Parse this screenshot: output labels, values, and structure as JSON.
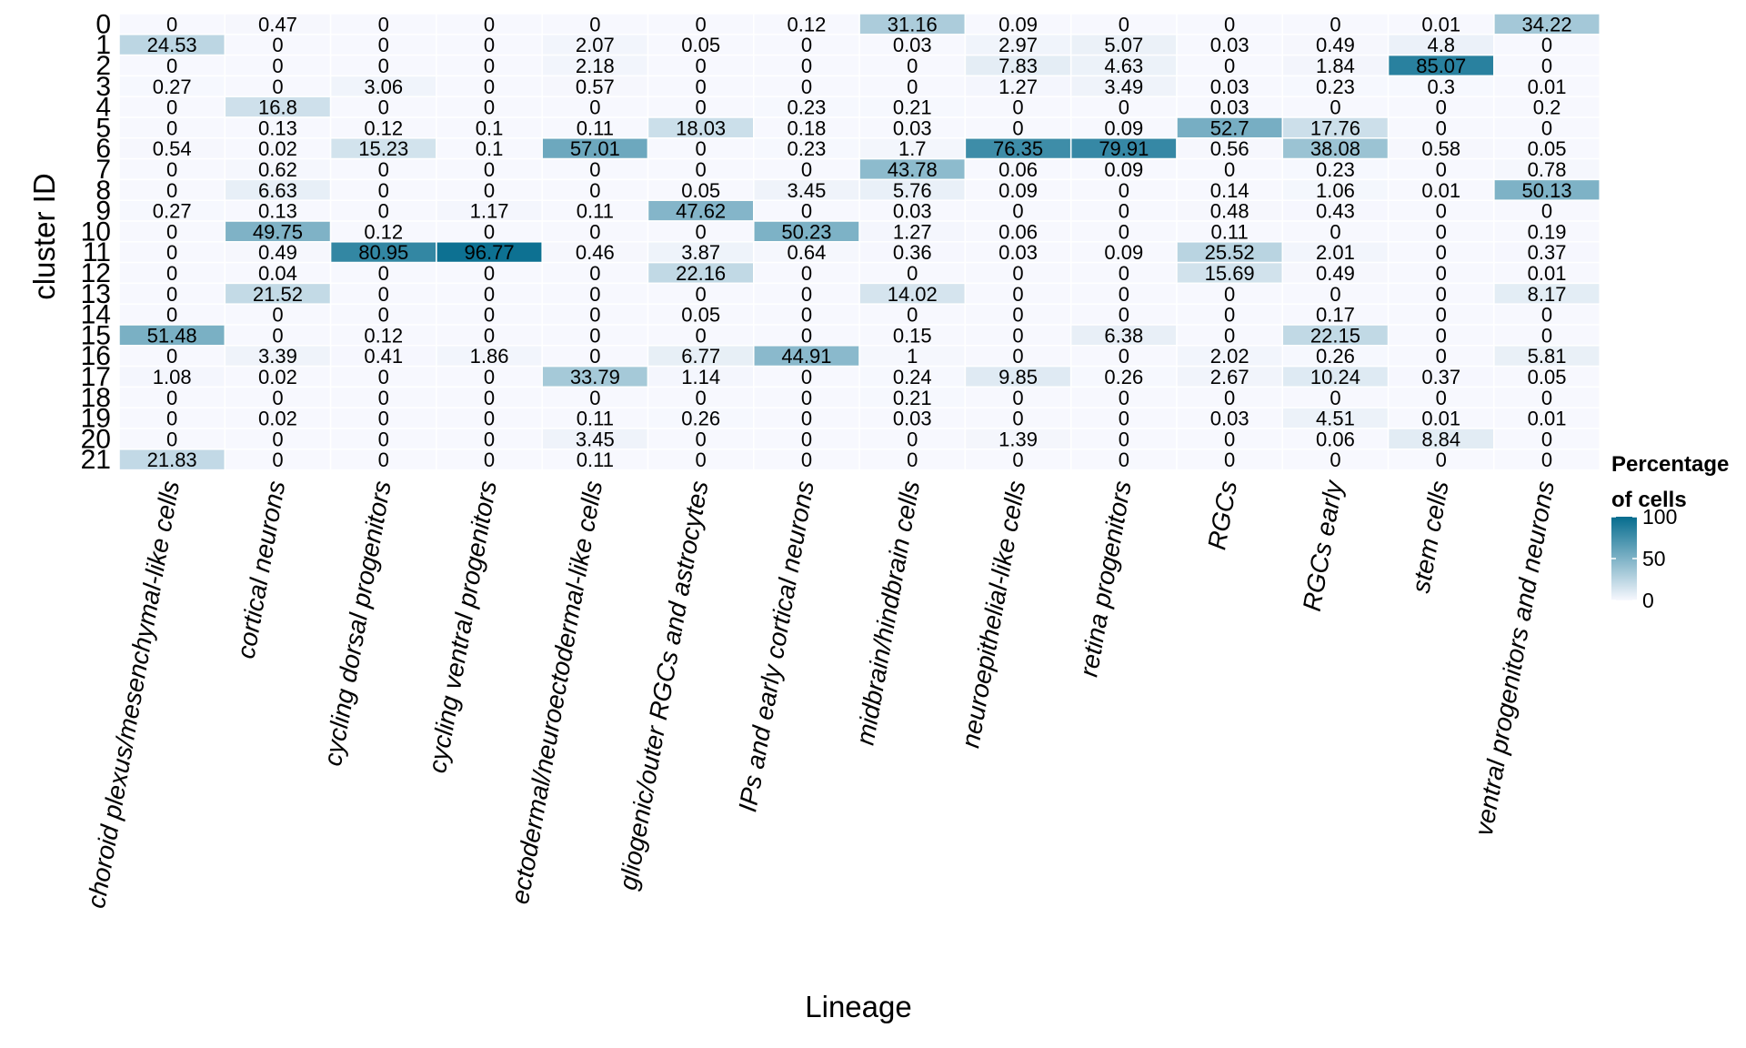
{
  "chart_data": {
    "type": "heatmap",
    "xlabel": "Lineage",
    "ylabel": "cluster ID",
    "legend": {
      "title_line1": "Percentage",
      "title_line2": "of cells",
      "ticks": [
        0,
        50,
        100
      ],
      "placement": "right",
      "color_low": "#f7f8fe",
      "color_high": "#056c8e"
    },
    "columns": [
      "choroid plexus/mesenchymal-like cells",
      "cortical neurons",
      "cycling dorsal progenitors",
      "cycling ventral progenitors",
      "ectodermal/neuroectodermal-like cells",
      "gliogenic/outer RGCs and astrocytes",
      "IPs and early cortical neurons",
      "midbrain/hindbrain cells",
      "neuroepithelial-like cells",
      "retina progenitors",
      "RGCs",
      "RGCs early",
      "stem cells",
      "ventral progenitors and neurons"
    ],
    "rows": [
      "0",
      "1",
      "2",
      "3",
      "4",
      "5",
      "6",
      "7",
      "8",
      "9",
      "10",
      "11",
      "12",
      "13",
      "14",
      "15",
      "16",
      "17",
      "18",
      "19",
      "20",
      "21"
    ],
    "values": [
      [
        0,
        0.47,
        0,
        0,
        0,
        0,
        0.12,
        31.16,
        0.09,
        0,
        0,
        0,
        0.01,
        34.22
      ],
      [
        24.53,
        0,
        0,
        0,
        2.07,
        0.05,
        0,
        0.03,
        2.97,
        5.07,
        0.03,
        0.49,
        4.8,
        0
      ],
      [
        0,
        0,
        0,
        0,
        2.18,
        0,
        0,
        0,
        7.83,
        4.63,
        0,
        1.84,
        85.07,
        0
      ],
      [
        0.27,
        0,
        3.06,
        0,
        0.57,
        0,
        0,
        0,
        1.27,
        3.49,
        0.03,
        0.23,
        0.3,
        0.01
      ],
      [
        0,
        16.8,
        0,
        0,
        0,
        0,
        0.23,
        0.21,
        0,
        0,
        0.03,
        0,
        0,
        0.2
      ],
      [
        0,
        0.13,
        0.12,
        0.1,
        0.11,
        18.03,
        0.18,
        0.03,
        0,
        0.09,
        52.7,
        17.76,
        0,
        0
      ],
      [
        0.54,
        0.02,
        15.23,
        0.1,
        57.01,
        0,
        0.23,
        1.7,
        76.35,
        79.91,
        0.56,
        38.08,
        0.58,
        0.05
      ],
      [
        0,
        0.62,
        0,
        0,
        0,
        0,
        0,
        43.78,
        0.06,
        0.09,
        0,
        0.23,
        0,
        0.78
      ],
      [
        0,
        6.63,
        0,
        0,
        0,
        0.05,
        3.45,
        5.76,
        0.09,
        0,
        0.14,
        1.06,
        0.01,
        50.13
      ],
      [
        0.27,
        0.13,
        0,
        1.17,
        0.11,
        47.62,
        0,
        0.03,
        0,
        0,
        0.48,
        0.43,
        0,
        0
      ],
      [
        0,
        49.75,
        0.12,
        0,
        0,
        0,
        50.23,
        1.27,
        0.06,
        0,
        0.11,
        0,
        0,
        0.19
      ],
      [
        0,
        0.49,
        80.95,
        96.77,
        0.46,
        3.87,
        0.64,
        0.36,
        0.03,
        0.09,
        25.52,
        2.01,
        0,
        0.37
      ],
      [
        0,
        0.04,
        0,
        0,
        0,
        22.16,
        0,
        0,
        0,
        0,
        15.69,
        0.49,
        0,
        0.01
      ],
      [
        0,
        21.52,
        0,
        0,
        0,
        0,
        0,
        14.02,
        0,
        0,
        0,
        0,
        0,
        8.17
      ],
      [
        0,
        0,
        0,
        0,
        0,
        0.05,
        0,
        0,
        0,
        0,
        0,
        0.17,
        0,
        0
      ],
      [
        51.48,
        0,
        0.12,
        0,
        0,
        0,
        0,
        0.15,
        0,
        6.38,
        0,
        22.15,
        0,
        0
      ],
      [
        0,
        3.39,
        0.41,
        1.86,
        0,
        6.77,
        44.91,
        1,
        0,
        0,
        2.02,
        0.26,
        0,
        5.81
      ],
      [
        1.08,
        0.02,
        0,
        0,
        33.79,
        1.14,
        0,
        0.24,
        9.85,
        0.26,
        2.67,
        10.24,
        0.37,
        0.05
      ],
      [
        0,
        0,
        0,
        0,
        0,
        0,
        0,
        0.21,
        0,
        0,
        0,
        0,
        0,
        0
      ],
      [
        0,
        0.02,
        0,
        0,
        0.11,
        0.26,
        0,
        0.03,
        0,
        0,
        0.03,
        4.51,
        0.01,
        0.01
      ],
      [
        0,
        0,
        0,
        0,
        3.45,
        0,
        0,
        0,
        1.39,
        0,
        0,
        0.06,
        8.84,
        0
      ],
      [
        21.83,
        0,
        0,
        0,
        0.11,
        0,
        0,
        0,
        0,
        0,
        0,
        0,
        0,
        0
      ]
    ]
  }
}
